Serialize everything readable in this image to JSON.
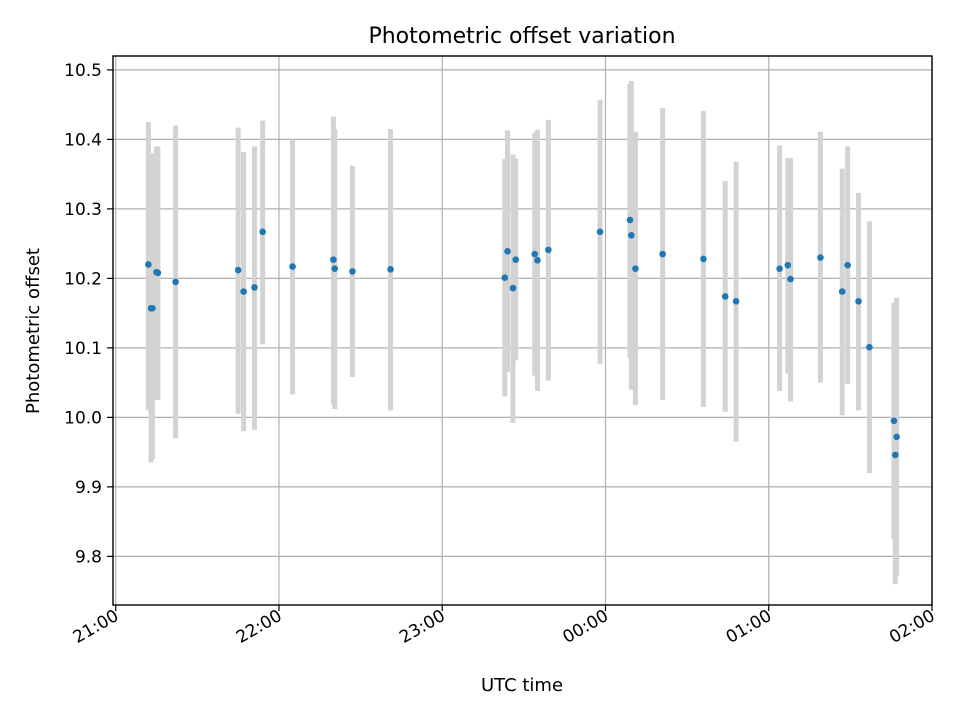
{
  "chart_data": {
    "type": "scatter",
    "title": "Photometric offset variation",
    "xlabel": "UTC time",
    "ylabel": "Photometric offset",
    "xlim": [
      "20:59",
      "02:00"
    ],
    "ylim": [
      9.73,
      10.52
    ],
    "x_ticks": [
      "21:00",
      "22:00",
      "23:00",
      "00:00",
      "01:00",
      "02:00"
    ],
    "y_ticks": [
      9.8,
      9.9,
      10.0,
      10.1,
      10.2,
      10.3,
      10.4,
      10.5
    ],
    "grid": true,
    "colors": {
      "points": "#1f77b4",
      "error_bars": "#d3d3d3",
      "grid": "#b0b0b0"
    },
    "points": [
      {
        "t": "21:12",
        "y": 10.22,
        "lo": 10.01,
        "hi": 10.425
      },
      {
        "t": "21:13",
        "y": 10.157,
        "lo": 9.935,
        "hi": 10.375
      },
      {
        "t": "21:13:30",
        "y": 10.157,
        "lo": 9.94,
        "hi": 10.38
      },
      {
        "t": "21:15",
        "y": 10.209,
        "lo": 10.025,
        "hi": 10.39
      },
      {
        "t": "21:15:30",
        "y": 10.208,
        "lo": 10.025,
        "hi": 10.39
      },
      {
        "t": "21:22",
        "y": 10.195,
        "lo": 9.97,
        "hi": 10.42
      },
      {
        "t": "21:45",
        "y": 10.212,
        "lo": 10.005,
        "hi": 10.417
      },
      {
        "t": "21:47",
        "y": 10.181,
        "lo": 9.98,
        "hi": 10.382
      },
      {
        "t": "21:51",
        "y": 10.187,
        "lo": 9.982,
        "hi": 10.39
      },
      {
        "t": "21:54",
        "y": 10.267,
        "lo": 10.105,
        "hi": 10.427
      },
      {
        "t": "22:05",
        "y": 10.217,
        "lo": 10.033,
        "hi": 10.4
      },
      {
        "t": "22:20",
        "y": 10.227,
        "lo": 10.02,
        "hi": 10.433
      },
      {
        "t": "22:20:30",
        "y": 10.214,
        "lo": 10.012,
        "hi": 10.415
      },
      {
        "t": "22:27",
        "y": 10.21,
        "lo": 10.058,
        "hi": 10.362
      },
      {
        "t": "22:41",
        "y": 10.213,
        "lo": 10.01,
        "hi": 10.415
      },
      {
        "t": "23:23",
        "y": 10.201,
        "lo": 10.03,
        "hi": 10.372
      },
      {
        "t": "23:24",
        "y": 10.239,
        "lo": 10.065,
        "hi": 10.413
      },
      {
        "t": "23:26",
        "y": 10.186,
        "lo": 9.992,
        "hi": 10.378
      },
      {
        "t": "23:27",
        "y": 10.227,
        "lo": 10.082,
        "hi": 10.372
      },
      {
        "t": "23:34",
        "y": 10.235,
        "lo": 10.06,
        "hi": 10.41
      },
      {
        "t": "23:35",
        "y": 10.226,
        "lo": 10.038,
        "hi": 10.414
      },
      {
        "t": "23:39",
        "y": 10.241,
        "lo": 10.053,
        "hi": 10.428
      },
      {
        "t": "23:58",
        "y": 10.267,
        "lo": 10.077,
        "hi": 10.457
      },
      {
        "t": "00:09",
        "y": 10.284,
        "lo": 10.085,
        "hi": 10.48
      },
      {
        "t": "00:09:30",
        "y": 10.262,
        "lo": 10.04,
        "hi": 10.484
      },
      {
        "t": "00:11",
        "y": 10.214,
        "lo": 10.018,
        "hi": 10.411
      },
      {
        "t": "00:21",
        "y": 10.235,
        "lo": 10.025,
        "hi": 10.445
      },
      {
        "t": "00:36",
        "y": 10.228,
        "lo": 10.015,
        "hi": 10.441
      },
      {
        "t": "00:44",
        "y": 10.174,
        "lo": 10.008,
        "hi": 10.34
      },
      {
        "t": "00:48",
        "y": 10.167,
        "lo": 9.965,
        "hi": 10.368
      },
      {
        "t": "01:04",
        "y": 10.214,
        "lo": 10.038,
        "hi": 10.391
      },
      {
        "t": "01:07",
        "y": 10.219,
        "lo": 10.063,
        "hi": 10.373
      },
      {
        "t": "01:08",
        "y": 10.199,
        "lo": 10.023,
        "hi": 10.373
      },
      {
        "t": "01:19",
        "y": 10.23,
        "lo": 10.05,
        "hi": 10.411
      },
      {
        "t": "01:27",
        "y": 10.181,
        "lo": 10.003,
        "hi": 10.358
      },
      {
        "t": "01:29",
        "y": 10.219,
        "lo": 10.048,
        "hi": 10.39
      },
      {
        "t": "01:33",
        "y": 10.167,
        "lo": 10.01,
        "hi": 10.323
      },
      {
        "t": "01:37",
        "y": 10.101,
        "lo": 9.92,
        "hi": 10.282
      },
      {
        "t": "01:46",
        "y": 9.995,
        "lo": 9.825,
        "hi": 10.165
      },
      {
        "t": "01:46:30",
        "y": 9.946,
        "lo": 9.76,
        "hi": 10.131
      },
      {
        "t": "01:47",
        "y": 9.972,
        "lo": 9.772,
        "hi": 10.172
      }
    ]
  }
}
